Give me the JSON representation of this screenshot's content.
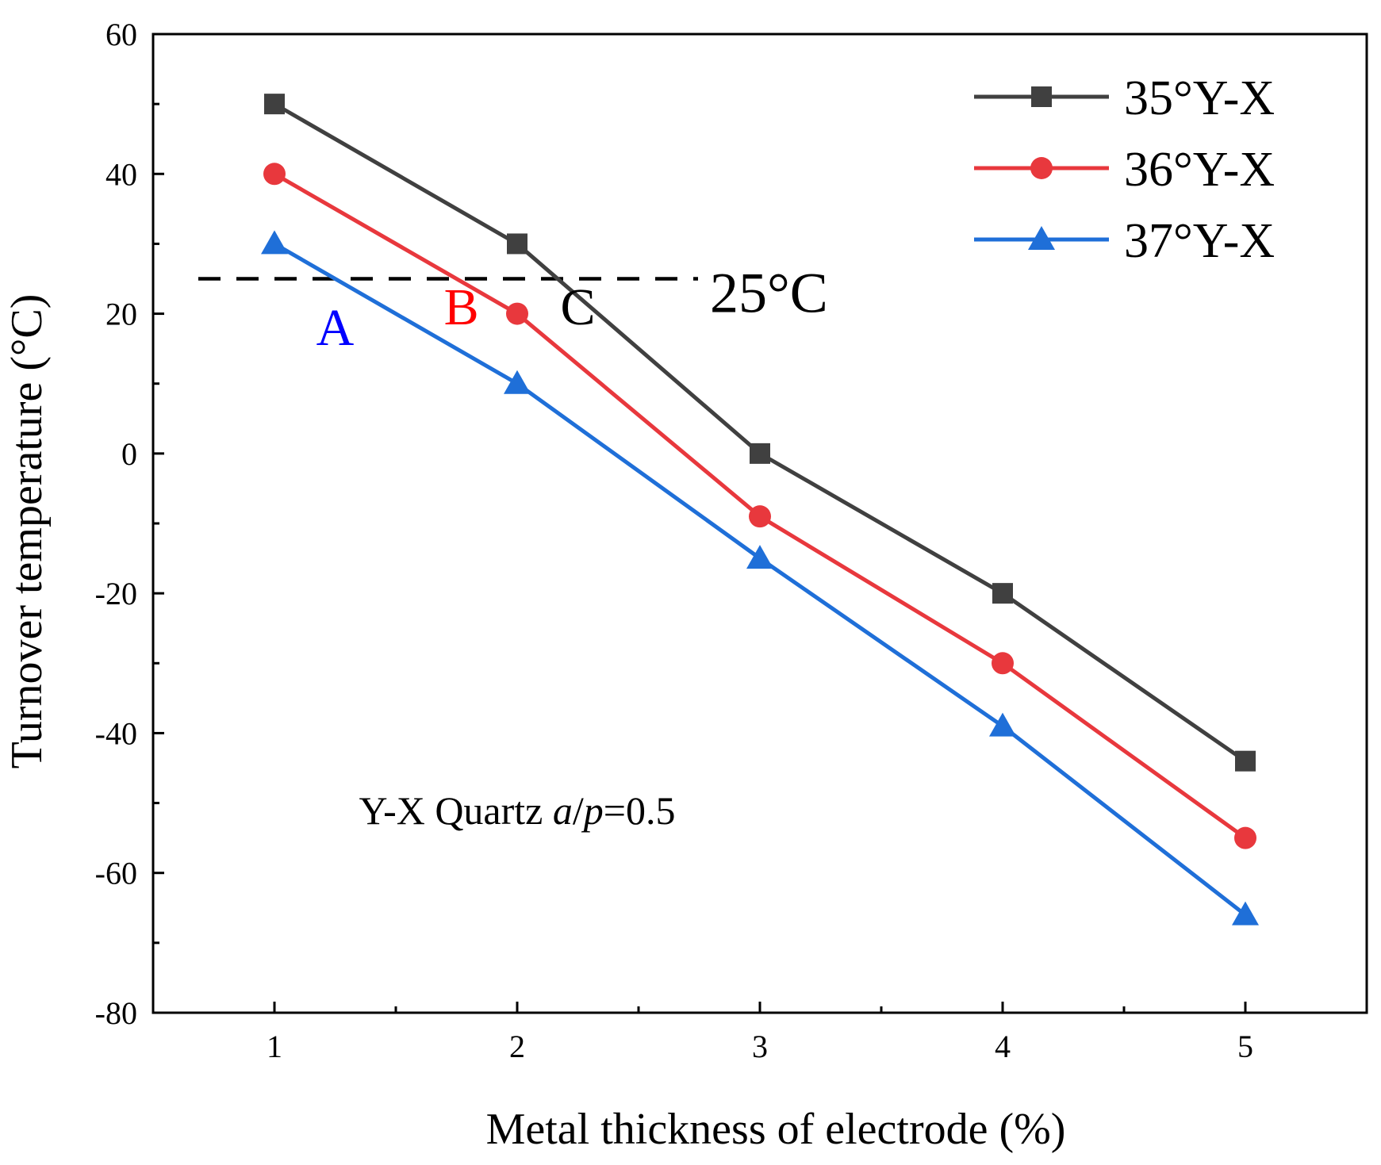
{
  "chart_data": {
    "type": "line",
    "title": "",
    "xlabel": "Metal thickness of electrode (%)",
    "ylabel": "Turnover temperature (°C)",
    "xlim": [
      0.5,
      5.5
    ],
    "ylim": [
      -80,
      60
    ],
    "x_ticks": [
      1,
      2,
      3,
      4,
      5
    ],
    "y_ticks": [
      -80,
      -60,
      -40,
      -20,
      0,
      20,
      40,
      60
    ],
    "x_tick_labels": [
      "1",
      "2",
      "3",
      "4",
      "5"
    ],
    "y_tick_labels": [
      "-80",
      "-60",
      "-40",
      "-20",
      "0",
      "20",
      "40",
      "60"
    ],
    "grid": false,
    "legend_position": "top-right",
    "x": [
      1,
      2,
      3,
      4,
      5
    ],
    "series": [
      {
        "name": "35°Y-X",
        "marker": "square",
        "color": "#404040",
        "values": [
          50,
          30,
          0,
          -20,
          -44
        ]
      },
      {
        "name": "36°Y-X",
        "marker": "circle",
        "color": "#e8383d",
        "values": [
          40,
          20,
          -9,
          -30,
          -55
        ]
      },
      {
        "name": "37°Y-X",
        "marker": "triangle",
        "color": "#1f6fd8",
        "values": [
          30,
          10,
          -15,
          -39,
          -66
        ]
      }
    ],
    "reference_line": {
      "y": 25,
      "label": "25°C",
      "color": "#000000",
      "style": "dashed"
    },
    "annotations": [
      {
        "text": "A",
        "color": "#0000ff",
        "x": 1.25,
        "y": 15.5
      },
      {
        "text": "B",
        "color": "#ff0000",
        "x": 1.77,
        "y": 18.5
      },
      {
        "text": "C",
        "color": "#000000",
        "x": 2.25,
        "y": 18.5
      },
      {
        "text": "Y-X Quartz a/p=0.5",
        "parts": [
          {
            "text": "Y-X Quartz ",
            "italic": false
          },
          {
            "text": "a",
            "italic": true
          },
          {
            "text": "/",
            "italic": false
          },
          {
            "text": "p",
            "italic": true
          },
          {
            "text": "=0.5",
            "italic": false
          }
        ],
        "color": "#000000",
        "x": 2.0,
        "y": -53
      }
    ]
  }
}
